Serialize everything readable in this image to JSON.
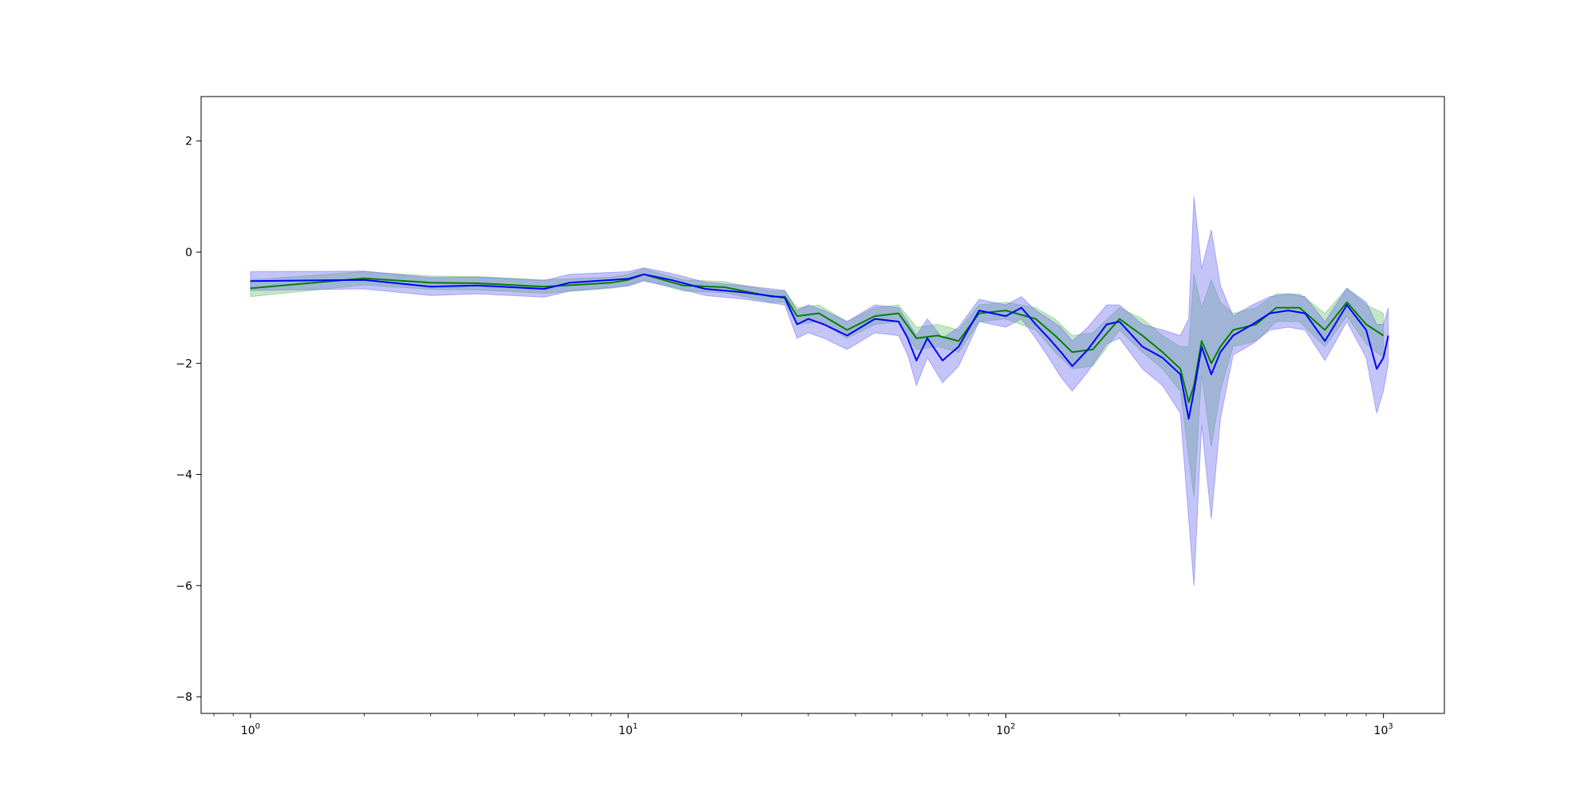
{
  "chart_data": {
    "type": "line",
    "xscale": "log",
    "xlim": [
      0.74,
      1450
    ],
    "ylim": [
      -8.3,
      2.8
    ],
    "grid": false,
    "legend": "none",
    "x_ticks": [
      {
        "value": 1,
        "base": "10",
        "exp": "0"
      },
      {
        "value": 10,
        "base": "10",
        "exp": "1"
      },
      {
        "value": 100,
        "base": "10",
        "exp": "2"
      },
      {
        "value": 1000,
        "base": "10",
        "exp": "3"
      }
    ],
    "y_ticks": [
      {
        "value": 2,
        "label": "2"
      },
      {
        "value": 0,
        "label": "0"
      },
      {
        "value": -2,
        "label": "−2"
      },
      {
        "value": -4,
        "label": "−4"
      },
      {
        "value": -6,
        "label": "−6"
      },
      {
        "value": -8,
        "label": "−8"
      }
    ],
    "series": [
      {
        "color": "#008000",
        "band_color": "#6ac46a",
        "points": [
          [
            1,
            -0.65,
            0.15
          ],
          [
            2,
            -0.47,
            0.12
          ],
          [
            3,
            -0.55,
            0.12
          ],
          [
            4,
            -0.56,
            0.12
          ],
          [
            6,
            -0.62,
            0.12
          ],
          [
            9,
            -0.55,
            0.1
          ],
          [
            10,
            -0.5,
            0.1
          ],
          [
            11,
            -0.4,
            0.1
          ],
          [
            14,
            -0.6,
            0.1
          ],
          [
            18,
            -0.63,
            0.1
          ],
          [
            24,
            -0.8,
            0.1
          ],
          [
            26,
            -0.8,
            0.1
          ],
          [
            28,
            -1.15,
            0.15
          ],
          [
            32,
            -1.1,
            0.15
          ],
          [
            38,
            -1.4,
            0.15
          ],
          [
            45,
            -1.15,
            0.15
          ],
          [
            52,
            -1.1,
            0.15
          ],
          [
            58,
            -1.55,
            0.2
          ],
          [
            66,
            -1.5,
            0.2
          ],
          [
            75,
            -1.6,
            0.2
          ],
          [
            85,
            -1.1,
            0.15
          ],
          [
            100,
            -1.05,
            0.15
          ],
          [
            120,
            -1.2,
            0.2
          ],
          [
            135,
            -1.5,
            0.3
          ],
          [
            150,
            -1.8,
            0.3
          ],
          [
            170,
            -1.75,
            0.3
          ],
          [
            200,
            -1.2,
            0.2
          ],
          [
            230,
            -1.5,
            0.3
          ],
          [
            260,
            -1.8,
            0.3
          ],
          [
            290,
            -2.1,
            0.4
          ],
          [
            305,
            -2.7,
            1.0
          ],
          [
            315,
            -2.4,
            2.0
          ],
          [
            330,
            -1.6,
            0.6
          ],
          [
            350,
            -2.0,
            1.5
          ],
          [
            370,
            -1.7,
            0.8
          ],
          [
            400,
            -1.4,
            0.3
          ],
          [
            460,
            -1.3,
            0.3
          ],
          [
            520,
            -1.0,
            0.25
          ],
          [
            600,
            -1.0,
            0.25
          ],
          [
            700,
            -1.4,
            0.3
          ],
          [
            800,
            -0.9,
            0.25
          ],
          [
            900,
            -1.3,
            0.35
          ],
          [
            1000,
            -1.5,
            0.4
          ]
        ]
      },
      {
        "color": "#0000ff",
        "band_color": "#6c6cf0",
        "points": [
          [
            1,
            -0.52,
            0.17
          ],
          [
            2,
            -0.5,
            0.16
          ],
          [
            3,
            -0.62,
            0.16
          ],
          [
            4,
            -0.6,
            0.15
          ],
          [
            6,
            -0.66,
            0.15
          ],
          [
            7,
            -0.55,
            0.15
          ],
          [
            10,
            -0.48,
            0.13
          ],
          [
            11,
            -0.4,
            0.12
          ],
          [
            13,
            -0.5,
            0.12
          ],
          [
            16,
            -0.66,
            0.12
          ],
          [
            20,
            -0.72,
            0.12
          ],
          [
            26,
            -0.82,
            0.13
          ],
          [
            28,
            -1.3,
            0.25
          ],
          [
            30,
            -1.2,
            0.25
          ],
          [
            33,
            -1.3,
            0.25
          ],
          [
            38,
            -1.5,
            0.25
          ],
          [
            45,
            -1.2,
            0.25
          ],
          [
            52,
            -1.25,
            0.25
          ],
          [
            55,
            -1.55,
            0.3
          ],
          [
            58,
            -1.95,
            0.45
          ],
          [
            62,
            -1.55,
            0.35
          ],
          [
            68,
            -1.95,
            0.4
          ],
          [
            75,
            -1.7,
            0.35
          ],
          [
            85,
            -1.05,
            0.2
          ],
          [
            100,
            -1.15,
            0.2
          ],
          [
            110,
            -1.0,
            0.2
          ],
          [
            120,
            -1.3,
            0.25
          ],
          [
            130,
            -1.55,
            0.35
          ],
          [
            140,
            -1.8,
            0.45
          ],
          [
            150,
            -2.05,
            0.45
          ],
          [
            165,
            -1.75,
            0.4
          ],
          [
            185,
            -1.3,
            0.35
          ],
          [
            200,
            -1.25,
            0.3
          ],
          [
            230,
            -1.7,
            0.4
          ],
          [
            260,
            -1.9,
            0.5
          ],
          [
            290,
            -2.2,
            0.7
          ],
          [
            305,
            -3.0,
            1.8
          ],
          [
            315,
            -2.5,
            3.5
          ],
          [
            330,
            -1.7,
            1.4
          ],
          [
            350,
            -2.2,
            2.6
          ],
          [
            370,
            -1.8,
            1.2
          ],
          [
            400,
            -1.5,
            0.35
          ],
          [
            450,
            -1.3,
            0.35
          ],
          [
            500,
            -1.1,
            0.3
          ],
          [
            560,
            -1.05,
            0.3
          ],
          [
            620,
            -1.1,
            0.3
          ],
          [
            700,
            -1.6,
            0.35
          ],
          [
            800,
            -0.95,
            0.3
          ],
          [
            900,
            -1.4,
            0.5
          ],
          [
            960,
            -2.1,
            0.8
          ],
          [
            1000,
            -1.9,
            0.6
          ],
          [
            1030,
            -1.5,
            0.5
          ]
        ]
      }
    ]
  }
}
